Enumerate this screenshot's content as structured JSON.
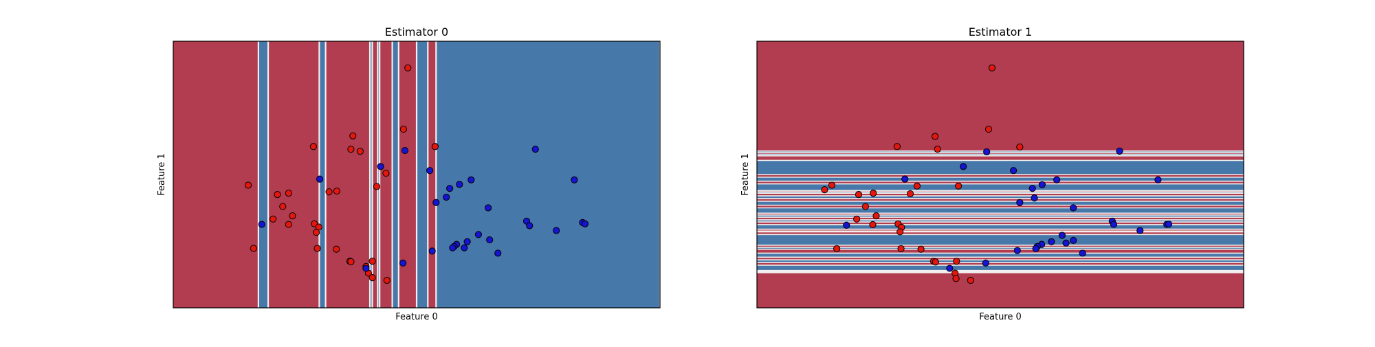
{
  "colors": {
    "red_class": "#e4170f",
    "blue_class": "#1414d2",
    "red_region": "#b23c50",
    "blue_region": "#4778aa",
    "boundary": "#f2f0ee",
    "marker_edge": "#000000"
  },
  "chart_data": [
    {
      "type": "scatter",
      "title": "Estimator 0",
      "xlabel": "Feature 0",
      "ylabel": "Feature 1",
      "xlim": [
        0,
        100
      ],
      "ylim": [
        0,
        100
      ],
      "ticks": false,
      "decision_regions": {
        "orientation": "vertical",
        "default_class": "red",
        "bands": [
          {
            "from": 17.5,
            "to": 19.5,
            "class": "blue"
          },
          {
            "from": 30.0,
            "to": 31.3,
            "class": "blue"
          },
          {
            "from": 40.4,
            "to": 40.9,
            "class": "blue"
          },
          {
            "from": 42.0,
            "to": 42.4,
            "class": "blue"
          },
          {
            "from": 45.0,
            "to": 46.3,
            "class": "blue"
          },
          {
            "from": 50.0,
            "to": 52.3,
            "class": "blue"
          },
          {
            "from": 54.0,
            "to": 100.0,
            "class": "blue"
          }
        ]
      },
      "series": [
        {
          "name": "red",
          "points": [
            [
              48.2,
              90
            ],
            [
              47.3,
              67
            ],
            [
              28.8,
              60.5
            ],
            [
              36.9,
              64.5
            ],
            [
              36.5,
              59.5
            ],
            [
              38.4,
              58.7
            ],
            [
              53.8,
              60.5
            ],
            [
              15.4,
              46
            ],
            [
              21.4,
              42.5
            ],
            [
              23.7,
              43
            ],
            [
              33.6,
              43.8
            ],
            [
              41.8,
              45.5
            ],
            [
              43.7,
              50.5
            ],
            [
              32.0,
              43.5
            ],
            [
              22.5,
              38
            ],
            [
              24.5,
              34.5
            ],
            [
              20.5,
              33.3
            ],
            [
              23.7,
              31.3
            ],
            [
              29.0,
              31.5
            ],
            [
              29.9,
              30.3
            ],
            [
              29.4,
              28.3
            ],
            [
              16.5,
              22.3
            ],
            [
              29.6,
              22.3
            ],
            [
              33.5,
              22
            ],
            [
              36.3,
              17.5
            ],
            [
              36.5,
              17.3
            ],
            [
              39.6,
              15.5
            ],
            [
              40.1,
              13
            ],
            [
              40.9,
              17.5
            ],
            [
              40.9,
              11.3
            ],
            [
              43.9,
              10.3
            ]
          ]
        },
        {
          "name": "blue",
          "points": [
            [
              74.4,
              59.5
            ],
            [
              47.6,
              59
            ],
            [
              42.6,
              53
            ],
            [
              52.7,
              51.5
            ],
            [
              30.1,
              48.3
            ],
            [
              56.8,
              44.8
            ],
            [
              58.8,
              46.3
            ],
            [
              61.2,
              48
            ],
            [
              82.4,
              48
            ],
            [
              54.0,
              39.5
            ],
            [
              56.1,
              41.5
            ],
            [
              64.7,
              37.5
            ],
            [
              72.6,
              32.5
            ],
            [
              73.2,
              30.8
            ],
            [
              84.1,
              32
            ],
            [
              84.6,
              31.5
            ],
            [
              18.2,
              31.3
            ],
            [
              78.7,
              29
            ],
            [
              62.7,
              27.5
            ],
            [
              65.0,
              25.5
            ],
            [
              60.4,
              24.8
            ],
            [
              58.2,
              23.8
            ],
            [
              57.7,
              23
            ],
            [
              57.4,
              22.5
            ],
            [
              59.8,
              22.5
            ],
            [
              53.2,
              21.3
            ],
            [
              66.7,
              20.5
            ],
            [
              47.2,
              16.8
            ],
            [
              39.6,
              14.8
            ]
          ]
        }
      ]
    },
    {
      "type": "scatter",
      "title": "Estimator 1",
      "xlabel": "Feature 0",
      "ylabel": "Feature 1",
      "xlim": [
        0,
        100
      ],
      "ylim": [
        0,
        100
      ],
      "ticks": false,
      "decision_regions": {
        "orientation": "horizontal",
        "default_class": "red",
        "bands": [
          {
            "from": 58.2,
            "to": 58.8,
            "class": "blue"
          },
          {
            "from": 57.0,
            "to": 57.6,
            "class": "blue"
          },
          {
            "from": 50.0,
            "to": 55.3,
            "class": "blue"
          },
          {
            "from": 47.5,
            "to": 49.0,
            "class": "blue"
          },
          {
            "from": 44.0,
            "to": 46.5,
            "class": "blue"
          },
          {
            "from": 43.0,
            "to": 43.5,
            "class": "blue"
          },
          {
            "from": 41.0,
            "to": 42.0,
            "class": "blue"
          },
          {
            "from": 38.5,
            "to": 40.0,
            "class": "blue"
          },
          {
            "from": 35.5,
            "to": 37.5,
            "class": "blue"
          },
          {
            "from": 34.0,
            "to": 34.8,
            "class": "blue"
          },
          {
            "from": 32.2,
            "to": 33.0,
            "class": "blue"
          },
          {
            "from": 29.5,
            "to": 31.2,
            "class": "blue"
          },
          {
            "from": 28.5,
            "to": 28.8,
            "class": "blue"
          },
          {
            "from": 23.5,
            "to": 27.5,
            "class": "blue"
          },
          {
            "from": 22.0,
            "to": 22.7,
            "class": "blue"
          },
          {
            "from": 19.0,
            "to": 20.5,
            "class": "blue"
          },
          {
            "from": 17.0,
            "to": 18.0,
            "class": "blue"
          },
          {
            "from": 14.0,
            "to": 16.0,
            "class": "blue"
          },
          {
            "from": 13.2,
            "to": 13.6,
            "class": "blue"
          }
        ]
      },
      "series": [
        {
          "name": "red",
          "points": [
            [
              48.3,
              90
            ],
            [
              47.6,
              67
            ],
            [
              36.6,
              64.3
            ],
            [
              28.8,
              60.5
            ],
            [
              37.1,
              59.5
            ],
            [
              54.0,
              60.3
            ],
            [
              15.4,
              46
            ],
            [
              32.9,
              45.7
            ],
            [
              41.4,
              45.7
            ],
            [
              20.9,
              42.5
            ],
            [
              23.9,
              43
            ],
            [
              31.5,
              42.8
            ],
            [
              13.9,
              44.3
            ],
            [
              22.3,
              38
            ],
            [
              24.5,
              34.5
            ],
            [
              20.5,
              33.3
            ],
            [
              23.8,
              31.2
            ],
            [
              29.0,
              31.5
            ],
            [
              29.7,
              30.2
            ],
            [
              29.4,
              28.5
            ],
            [
              16.4,
              22.2
            ],
            [
              29.6,
              22.2
            ],
            [
              33.7,
              22.0
            ],
            [
              36.3,
              17.5
            ],
            [
              36.7,
              17.2
            ],
            [
              41.0,
              17.5
            ],
            [
              40.7,
              13
            ],
            [
              40.9,
              11
            ],
            [
              43.9,
              10.3
            ]
          ]
        },
        {
          "name": "blue",
          "points": [
            [
              74.5,
              58.8
            ],
            [
              47.2,
              58.5
            ],
            [
              42.4,
              53
            ],
            [
              52.7,
              51.5
            ],
            [
              30.4,
              48.3
            ],
            [
              56.6,
              44.8
            ],
            [
              58.6,
              46.2
            ],
            [
              61.6,
              48
            ],
            [
              82.4,
              48
            ],
            [
              54.0,
              39.5
            ],
            [
              57.0,
              41.2
            ],
            [
              65.0,
              37.5
            ],
            [
              73.0,
              32.5
            ],
            [
              73.3,
              31.3
            ],
            [
              84.2,
              31.3
            ],
            [
              84.6,
              31.4
            ],
            [
              18.4,
              31.0
            ],
            [
              78.7,
              29
            ],
            [
              62.7,
              27.2
            ],
            [
              65.0,
              25.3
            ],
            [
              60.5,
              24.8
            ],
            [
              58.5,
              23.8
            ],
            [
              57.6,
              23
            ],
            [
              57.3,
              22.2
            ],
            [
              63.5,
              24.3
            ],
            [
              53.5,
              21.5
            ],
            [
              66.9,
              20.5
            ],
            [
              47.0,
              16.8
            ],
            [
              39.6,
              14.8
            ]
          ]
        }
      ]
    }
  ]
}
